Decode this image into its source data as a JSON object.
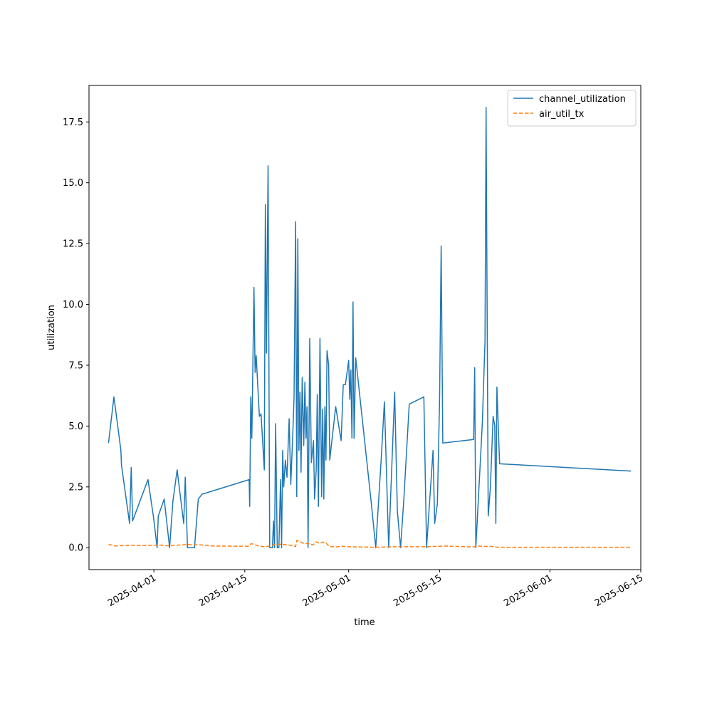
{
  "chart_data": {
    "type": "line",
    "title": "",
    "xlabel": "time",
    "ylabel": "utilization",
    "x_axis_type": "date",
    "xlim": [
      "2025-03-22",
      "2025-06-15"
    ],
    "ylim": [
      -0.9,
      19.0
    ],
    "grid": false,
    "legend_position": "top-right",
    "x_ticks": [
      "2025-04-01",
      "2025-04-15",
      "2025-05-01",
      "2025-05-15",
      "2025-06-01",
      "2025-06-15"
    ],
    "y_ticks": [
      0.0,
      2.5,
      5.0,
      7.5,
      10.0,
      12.5,
      15.0,
      17.5
    ],
    "y_tick_labels": [
      "0.0",
      "2.5",
      "5.0",
      "7.5",
      "10.0",
      "12.5",
      "15.0",
      "17.5"
    ],
    "series": [
      {
        "name": "channel_utilization",
        "color": "#1f77b4",
        "dash": "solid",
        "points": [
          [
            "2025-03-25T00:00",
            4.3
          ],
          [
            "2025-03-25T20:00",
            6.2
          ],
          [
            "2025-03-26T22:00",
            4.0
          ],
          [
            "2025-03-27T00:00",
            3.4
          ],
          [
            "2025-03-28T06:00",
            1.0
          ],
          [
            "2025-03-28T12:00",
            3.3
          ],
          [
            "2025-03-28T17:00",
            1.1
          ],
          [
            "2025-03-31T02:00",
            2.8
          ],
          [
            "2025-03-31T22:00",
            1.3
          ],
          [
            "2025-04-01T12:00",
            0.0
          ],
          [
            "2025-04-01T16:00",
            1.3
          ],
          [
            "2025-04-02T14:00",
            2.0
          ],
          [
            "2025-04-03T10:00",
            0.0
          ],
          [
            "2025-04-03T22:00",
            1.9
          ],
          [
            "2025-04-04T14:00",
            3.2
          ],
          [
            "2025-04-05T14:00",
            1.0
          ],
          [
            "2025-04-05T20:00",
            2.9
          ],
          [
            "2025-04-06T04:00",
            0.0
          ],
          [
            "2025-04-07T06:00",
            0.0
          ],
          [
            "2025-04-07T20:00",
            2.0
          ],
          [
            "2025-04-08T10:00",
            2.2
          ],
          [
            "2025-04-15T16:00",
            2.8
          ],
          [
            "2025-04-15T18:00",
            1.7
          ],
          [
            "2025-04-15T22:00",
            6.2
          ],
          [
            "2025-04-16T02:00",
            4.5
          ],
          [
            "2025-04-16T10:00",
            10.7
          ],
          [
            "2025-04-16T14:00",
            7.2
          ],
          [
            "2025-04-16T18:00",
            7.9
          ],
          [
            "2025-04-17T06:00",
            5.4
          ],
          [
            "2025-04-17T12:00",
            5.5
          ],
          [
            "2025-04-18T00:00",
            3.2
          ],
          [
            "2025-04-18T04:00",
            14.1
          ],
          [
            "2025-04-18T08:00",
            8.0
          ],
          [
            "2025-04-18T14:00",
            15.7
          ],
          [
            "2025-04-18T20:00",
            0.0
          ],
          [
            "2025-04-19T06:00",
            0.0
          ],
          [
            "2025-04-19T10:00",
            1.1
          ],
          [
            "2025-04-19T14:00",
            0.0
          ],
          [
            "2025-04-19T18:00",
            5.1
          ],
          [
            "2025-04-20T00:00",
            0.0
          ],
          [
            "2025-04-20T06:00",
            0.0
          ],
          [
            "2025-04-20T12:00",
            2.8
          ],
          [
            "2025-04-20T16:00",
            0.0
          ],
          [
            "2025-04-20T20:00",
            4.0
          ],
          [
            "2025-04-21T00:00",
            2.5
          ],
          [
            "2025-04-21T06:00",
            3.6
          ],
          [
            "2025-04-21T12:00",
            2.9
          ],
          [
            "2025-04-21T20:00",
            5.3
          ],
          [
            "2025-04-22T02:00",
            2.6
          ],
          [
            "2025-04-22T10:00",
            4.8
          ],
          [
            "2025-04-22T14:00",
            6.2
          ],
          [
            "2025-04-22T20:00",
            13.4
          ],
          [
            "2025-04-23T00:00",
            2.1
          ],
          [
            "2025-04-23T04:00",
            12.7
          ],
          [
            "2025-04-23T08:00",
            4.0
          ],
          [
            "2025-04-23T12:00",
            6.4
          ],
          [
            "2025-04-23T16:00",
            3.1
          ],
          [
            "2025-04-23T20:00",
            7.0
          ],
          [
            "2025-04-24T02:00",
            4.2
          ],
          [
            "2025-04-24T06:00",
            6.8
          ],
          [
            "2025-04-24T10:00",
            4.5
          ],
          [
            "2025-04-24T14:00",
            5.8
          ],
          [
            "2025-04-24T18:00",
            0.0
          ],
          [
            "2025-04-25T00:00",
            8.6
          ],
          [
            "2025-04-25T06:00",
            3.5
          ],
          [
            "2025-04-25T14:00",
            4.4
          ],
          [
            "2025-04-25T18:00",
            2.0
          ],
          [
            "2025-04-26T00:00",
            3.2
          ],
          [
            "2025-04-26T04:00",
            6.3
          ],
          [
            "2025-04-26T08:00",
            1.7
          ],
          [
            "2025-04-26T14:00",
            8.6
          ],
          [
            "2025-04-26T20:00",
            2.1
          ],
          [
            "2025-04-27T00:00",
            5.7
          ],
          [
            "2025-04-27T04:00",
            2.0
          ],
          [
            "2025-04-27T08:00",
            5.8
          ],
          [
            "2025-04-27T12:00",
            3.6
          ],
          [
            "2025-04-27T16:00",
            8.1
          ],
          [
            "2025-04-27T22:00",
            7.5
          ],
          [
            "2025-04-28T02:00",
            3.6
          ],
          [
            "2025-04-29T00:00",
            5.8
          ],
          [
            "2025-04-29T20:00",
            4.4
          ],
          [
            "2025-04-30T04:00",
            6.7
          ],
          [
            "2025-04-30T12:00",
            6.7
          ],
          [
            "2025-05-01T00:00",
            7.7
          ],
          [
            "2025-05-01T04:00",
            6.1
          ],
          [
            "2025-05-01T08:00",
            7.3
          ],
          [
            "2025-05-01T12:00",
            4.5
          ],
          [
            "2025-05-01T16:00",
            10.1
          ],
          [
            "2025-05-01T20:00",
            4.5
          ],
          [
            "2025-05-02T02:00",
            7.8
          ],
          [
            "2025-05-04T12:00",
            1.8
          ],
          [
            "2025-05-05T04:00",
            0.0
          ],
          [
            "2025-05-06T00:00",
            3.6
          ],
          [
            "2025-05-06T12:00",
            6.0
          ],
          [
            "2025-05-07T04:00",
            0.0
          ],
          [
            "2025-05-08T02:00",
            6.4
          ],
          [
            "2025-05-08T12:00",
            1.5
          ],
          [
            "2025-05-09T00:00",
            0.0
          ],
          [
            "2025-05-09T12:00",
            2.0
          ],
          [
            "2025-05-10T08:00",
            5.9
          ],
          [
            "2025-05-12T14:00",
            6.2
          ],
          [
            "2025-05-13T00:00",
            0.0
          ],
          [
            "2025-05-14T00:00",
            4.0
          ],
          [
            "2025-05-14T06:00",
            1.0
          ],
          [
            "2025-05-14T16:00",
            1.8
          ],
          [
            "2025-05-15T00:00",
            6.1
          ],
          [
            "2025-05-15T06:00",
            12.4
          ],
          [
            "2025-05-15T12:00",
            4.3
          ],
          [
            "2025-05-20T06:00",
            4.45
          ],
          [
            "2025-05-20T10:00",
            7.4
          ],
          [
            "2025-05-20T14:00",
            0.0
          ],
          [
            "2025-05-21T14:00",
            5.1
          ],
          [
            "2025-05-22T00:00",
            8.5
          ],
          [
            "2025-05-22T04:00",
            18.1
          ],
          [
            "2025-05-22T12:00",
            1.3
          ],
          [
            "2025-05-22T20:00",
            2.5
          ],
          [
            "2025-05-23T06:00",
            5.4
          ],
          [
            "2025-05-23T12:00",
            5.0
          ],
          [
            "2025-05-23T16:00",
            1.0
          ],
          [
            "2025-05-23T20:00",
            6.6
          ],
          [
            "2025-05-24T06:00",
            3.45
          ],
          [
            "2025-06-13T12:00",
            3.15
          ]
        ]
      },
      {
        "name": "air_util_tx",
        "color": "#ff7f0e",
        "dash": "dashed",
        "points": [
          [
            "2025-03-25T00:00",
            0.13
          ],
          [
            "2025-03-25T12:00",
            0.11
          ],
          [
            "2025-03-26T00:00",
            0.07
          ],
          [
            "2025-03-27T00:00",
            0.09
          ],
          [
            "2025-03-28T00:00",
            0.1
          ],
          [
            "2025-03-30T00:00",
            0.09
          ],
          [
            "2025-04-01T00:00",
            0.1
          ],
          [
            "2025-04-02T00:00",
            0.11
          ],
          [
            "2025-04-03T00:00",
            0.08
          ],
          [
            "2025-04-05T00:00",
            0.11
          ],
          [
            "2025-04-06T00:00",
            0.13
          ],
          [
            "2025-04-07T00:00",
            0.12
          ],
          [
            "2025-04-08T00:00",
            0.12
          ],
          [
            "2025-04-10T00:00",
            0.07
          ],
          [
            "2025-04-15T12:00",
            0.06
          ],
          [
            "2025-04-16T00:00",
            0.17
          ],
          [
            "2025-04-16T12:00",
            0.12
          ],
          [
            "2025-04-17T00:00",
            0.08
          ],
          [
            "2025-04-18T00:00",
            0.04
          ],
          [
            "2025-04-19T00:00",
            0.07
          ],
          [
            "2025-04-19T12:00",
            0.13
          ],
          [
            "2025-04-20T00:00",
            0.15
          ],
          [
            "2025-04-21T00:00",
            0.13
          ],
          [
            "2025-04-22T00:00",
            0.1
          ],
          [
            "2025-04-22T20:00",
            0.05
          ],
          [
            "2025-04-23T00:00",
            0.3
          ],
          [
            "2025-04-23T12:00",
            0.25
          ],
          [
            "2025-04-24T00:00",
            0.18
          ],
          [
            "2025-04-25T00:00",
            0.16
          ],
          [
            "2025-04-25T12:00",
            0.11
          ],
          [
            "2025-04-26T00:00",
            0.24
          ],
          [
            "2025-04-26T12:00",
            0.18
          ],
          [
            "2025-04-27T00:00",
            0.23
          ],
          [
            "2025-04-27T12:00",
            0.2
          ],
          [
            "2025-04-28T00:00",
            0.05
          ],
          [
            "2025-04-29T00:00",
            0.03
          ],
          [
            "2025-04-30T00:00",
            0.06
          ],
          [
            "2025-05-01T00:00",
            0.04
          ],
          [
            "2025-05-03T00:00",
            0.03
          ],
          [
            "2025-05-05T00:00",
            0.02
          ],
          [
            "2025-05-08T00:00",
            0.04
          ],
          [
            "2025-05-12T00:00",
            0.04
          ],
          [
            "2025-05-14T00:00",
            0.05
          ],
          [
            "2025-05-16T00:00",
            0.07
          ],
          [
            "2025-05-20T00:00",
            0.03
          ],
          [
            "2025-05-21T00:00",
            0.07
          ],
          [
            "2025-05-22T00:00",
            0.05
          ],
          [
            "2025-05-23T00:00",
            0.05
          ],
          [
            "2025-05-24T00:00",
            0.02
          ],
          [
            "2025-06-01T00:00",
            0.02
          ],
          [
            "2025-06-13T12:00",
            0.02
          ]
        ]
      }
    ]
  }
}
